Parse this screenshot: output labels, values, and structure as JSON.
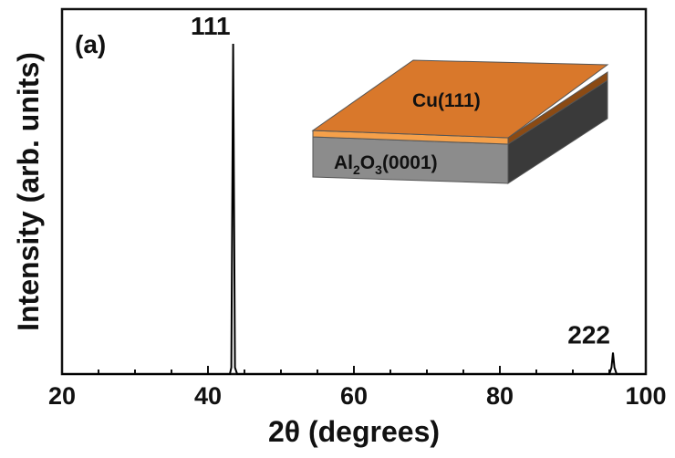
{
  "chart_data": {
    "type": "line",
    "panel_label": "(a)",
    "xlabel": "2θ (degrees)",
    "ylabel": "Intensity (arb. units)",
    "xlim": [
      20,
      100
    ],
    "ylim": [
      0,
      1
    ],
    "x_ticks": [
      20,
      40,
      60,
      80,
      100
    ],
    "y_ticks_shown": false,
    "grid": false,
    "series": [
      {
        "x": [
          20,
          43.0,
          43.2,
          43.35,
          43.45,
          43.55,
          43.7,
          44.0,
          95.0,
          95.3,
          95.5,
          95.7,
          96.0,
          100
        ],
        "y": [
          0.0,
          0.0,
          0.02,
          0.6,
          1.0,
          0.6,
          0.02,
          0.0,
          0.0,
          0.02,
          0.065,
          0.02,
          0.0,
          0.0
        ]
      }
    ],
    "annotations": [
      {
        "text": "111",
        "x": 43.45
      },
      {
        "text": "222",
        "x": 95.5
      }
    ],
    "inset": {
      "top_layer_label": "Cu(111)",
      "substrate_label_parts": [
        "Al",
        "2",
        "O",
        "3",
        "(0001)"
      ],
      "colors": {
        "film_top": "#d9782b",
        "film_front": "#f5a04a",
        "film_side": "#8a4a14",
        "substrate_front": "#8c8c8c",
        "substrate_side": "#3a3a3a"
      }
    }
  }
}
